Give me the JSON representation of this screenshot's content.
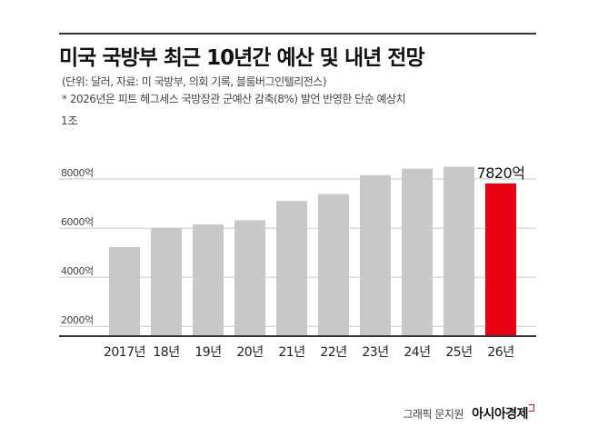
{
  "header": {
    "title": "미국 국방부 최근 10년간 예산 및 내년 전망",
    "subtitle_source": "(단위: 달러, 자료: 미 국방부, 의회 기록, 블룸버그인텔리전스)",
    "subtitle_note": "* 2026년은 피트 헤그세스 국방장관 군예산 감축(8%) 발언 반영한 단순 예상치"
  },
  "chart_data": {
    "type": "bar",
    "title": "미국 국방부 최근 10년간 예산 및 내년 전망",
    "unit_label": "1조",
    "categories": [
      "2017년",
      "18년",
      "19년",
      "20년",
      "21년",
      "22년",
      "23년",
      "24년",
      "25년",
      "26년"
    ],
    "values": [
      5230,
      5980,
      6150,
      6320,
      7110,
      7390,
      8160,
      8420,
      8500,
      7820
    ],
    "highlight_index": 9,
    "highlight_label": "7820억",
    "ylim": [
      1600,
      10000
    ],
    "yticks": [
      {
        "value": 2000,
        "label": "2000억"
      },
      {
        "value": 4000,
        "label": "4000억"
      },
      {
        "value": 6000,
        "label": "6000억"
      },
      {
        "value": 8000,
        "label": "8000억"
      }
    ],
    "grid": true,
    "colors": {
      "bar": "#c8c8c8",
      "highlight": "#e60012",
      "grid": "#c9c9c9"
    }
  },
  "footer": {
    "credit": "그래픽 문지원",
    "brand": "아시아경제"
  }
}
